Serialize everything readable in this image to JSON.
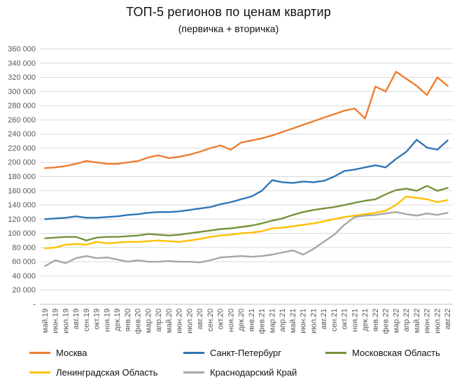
{
  "chart_data": {
    "type": "line",
    "title": "ТОП-5 регионов по ценам квартир",
    "subtitle": "(первичка + вторичка)",
    "categories": [
      "май.19",
      "июн.19",
      "июл.19",
      "авг.19",
      "сен.19",
      "окт.19",
      "ноя.19",
      "дек.19",
      "янв.20",
      "фев.20",
      "мар.20",
      "апр.20",
      "май.20",
      "июн.20",
      "июл.20",
      "авг.20",
      "сен.20",
      "окт.20",
      "ноя.20",
      "дек.20",
      "янв.21",
      "фев.21",
      "мар.21",
      "апр.21",
      "май.21",
      "июн.21",
      "июл.21",
      "авг.21",
      "сен.21",
      "окт.21",
      "ноя.21",
      "дек.21",
      "янв.22",
      "фев.22",
      "мар.22",
      "апр.22",
      "май.22",
      "июн.22",
      "июл.22",
      "авг.22"
    ],
    "series": [
      {
        "name": "Москва",
        "color": "#ED7D31",
        "values": [
          192000,
          193000,
          195000,
          198000,
          202000,
          200000,
          198000,
          198000,
          200000,
          202000,
          207000,
          210000,
          206000,
          208000,
          211000,
          215000,
          220000,
          224000,
          218000,
          228000,
          231000,
          234000,
          238000,
          243000,
          248000,
          253000,
          258000,
          263000,
          268000,
          273000,
          276000,
          262000,
          307000,
          300000,
          328000,
          318000,
          308000,
          295000,
          320000,
          308000
        ]
      },
      {
        "name": "Санкт-Петербург",
        "color": "#2E75B6",
        "values": [
          120000,
          121000,
          122000,
          124000,
          122000,
          122000,
          123000,
          124000,
          126000,
          127000,
          129000,
          130000,
          130000,
          131000,
          133000,
          135000,
          137000,
          141000,
          144000,
          148000,
          152000,
          160000,
          175000,
          172000,
          171000,
          173000,
          172000,
          174000,
          180000,
          188000,
          190000,
          193000,
          196000,
          193000,
          205000,
          215000,
          232000,
          221000,
          218000,
          231000
        ]
      },
      {
        "name": "Московская Область",
        "color": "#76923C",
        "values": [
          93000,
          94000,
          95000,
          95000,
          90000,
          94000,
          95000,
          95000,
          96000,
          97000,
          99000,
          98000,
          97000,
          98000,
          100000,
          102000,
          104000,
          106000,
          107000,
          109000,
          111000,
          114000,
          118000,
          121000,
          126000,
          130000,
          133000,
          135000,
          137000,
          140000,
          143000,
          146000,
          148000,
          155000,
          161000,
          163000,
          160000,
          167000,
          160000,
          164000
        ]
      },
      {
        "name": "Ленинградская Область",
        "color": "#FFC000",
        "values": [
          79000,
          80000,
          84000,
          85000,
          84000,
          88000,
          86000,
          87000,
          88000,
          88000,
          89000,
          90000,
          89000,
          88000,
          90000,
          92000,
          95000,
          97000,
          98000,
          100000,
          101000,
          103000,
          107000,
          108000,
          110000,
          112000,
          114000,
          117000,
          120000,
          123000,
          125000,
          127000,
          129000,
          132000,
          140000,
          152000,
          150000,
          148000,
          144000,
          147000
        ]
      },
      {
        "name": "Краснодарский Край",
        "color": "#A6A6A6",
        "values": [
          54000,
          62000,
          58000,
          65000,
          68000,
          65000,
          66000,
          63000,
          60000,
          62000,
          60000,
          60000,
          61000,
          60000,
          60000,
          59000,
          62000,
          66000,
          67000,
          68000,
          67000,
          68000,
          70000,
          73000,
          76000,
          70000,
          78000,
          88000,
          98000,
          112000,
          123000,
          125000,
          126000,
          128000,
          130000,
          127000,
          125000,
          128000,
          126000,
          129000
        ]
      }
    ],
    "ylim": [
      0,
      360000
    ],
    "y_tick_step": 20000,
    "y_tick_labels": [
      "360 000",
      "340 000",
      "320 000",
      "300 000",
      "280 000",
      "260 000",
      "240 000",
      "220 000",
      "200 000",
      "180 000",
      "160 000",
      "140 000",
      "120 000",
      "100 000",
      "80 000",
      "60 000",
      "40 000",
      "20 000",
      "-"
    ],
    "grid": true,
    "x_labels_rotated": true,
    "legend_position": "bottom"
  }
}
